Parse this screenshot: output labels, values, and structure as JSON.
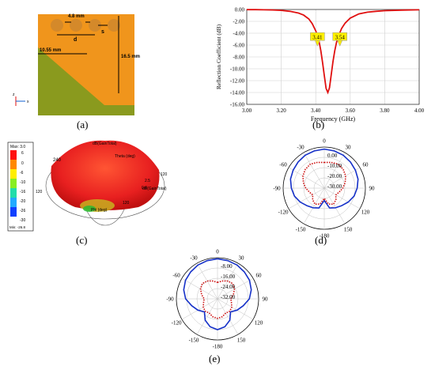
{
  "captions": [
    "(a)",
    "(b)",
    "(c)",
    "(d)",
    "(e)"
  ],
  "antenna": {
    "dims": [
      "4.8 mm",
      "d",
      "s",
      "10.55 mm",
      "16.5 mm"
    ],
    "axis_labels": [
      "z",
      "x"
    ],
    "colors": {
      "substrate": "#8a9a1e",
      "patch": "#f0951c",
      "hole": "#d4892a"
    }
  },
  "radiation3d": {
    "legend_title": "Max: 3.0",
    "legend_values": [
      "6",
      "0",
      "-6",
      "-10",
      "-16",
      "-20",
      "-26",
      "-30"
    ],
    "legend_min": "Min: -26.8",
    "label_top": "dB(GainTotal)",
    "label_theta": "Theta (deg)",
    "label_right": "dB(GainTotal)",
    "label_phi": "Phi (deg)",
    "tick_240": "240",
    "tick_120": "120",
    "tick_25": "2.5",
    "tick_0": "0.0",
    "tick_neg": "0.0",
    "tick_120b": "120",
    "tick_120c": "120"
  },
  "chart_data": [
    {
      "type": "line",
      "xlabel": "Frequency (GHz)",
      "ylabel": "Reflection Coefficient (dB)",
      "xlim": [
        3.0,
        4.0
      ],
      "ylim": [
        -16.0,
        0.0
      ],
      "xticks": [
        "3.00",
        "3.20",
        "3.40",
        "3.60",
        "3.80",
        "4.00"
      ],
      "yticks": [
        "0.00",
        "-2.00",
        "-4.00",
        "-6.00",
        "-8.00",
        "-10.00",
        "-12.00",
        "-14.00",
        "-16.00"
      ],
      "grid": true,
      "color": "#e01010",
      "x": [
        3.0,
        3.05,
        3.1,
        3.15,
        3.2,
        3.25,
        3.3,
        3.33,
        3.36,
        3.38,
        3.4,
        3.41,
        3.42,
        3.43,
        3.44,
        3.45,
        3.46,
        3.47,
        3.48,
        3.49,
        3.5,
        3.51,
        3.52,
        3.53,
        3.54,
        3.55,
        3.57,
        3.6,
        3.65,
        3.7,
        3.75,
        3.8,
        3.9,
        4.0
      ],
      "y": [
        -0.02,
        -0.03,
        -0.05,
        -0.08,
        -0.15,
        -0.3,
        -0.6,
        -0.95,
        -1.6,
        -2.4,
        -3.6,
        -4.4,
        -5.5,
        -7.0,
        -9.0,
        -11.2,
        -13.3,
        -14.0,
        -13.2,
        -11.0,
        -8.8,
        -7.0,
        -5.6,
        -4.6,
        -3.9,
        -3.2,
        -2.3,
        -1.45,
        -0.75,
        -0.45,
        -0.3,
        -0.2,
        -0.1,
        -0.05
      ],
      "markers": [
        {
          "x": 3.41,
          "label": "3.41"
        },
        {
          "x": 3.54,
          "label": "3.54"
        }
      ]
    },
    {
      "type": "polar",
      "angle_labels": [
        "0",
        "30",
        "60",
        "90",
        "120",
        "150",
        "-180",
        "-150",
        "-120",
        "-90",
        "-60",
        "-30"
      ],
      "radial_labels": [
        "0.00",
        "-10.00",
        "-20.00",
        "-30.00"
      ],
      "rlim": [
        -40,
        0
      ],
      "series": [
        {
          "color": "#1530c8",
          "dash": "solid",
          "theta": [
            0,
            15,
            30,
            45,
            60,
            75,
            90,
            105,
            120,
            135,
            150,
            165,
            180,
            195,
            210,
            225,
            240,
            255,
            270,
            285,
            300,
            315,
            330,
            345
          ],
          "r": [
            -2,
            -2.5,
            -3,
            -4,
            -5,
            -6,
            -8,
            -10,
            -13,
            -16,
            -18,
            -20,
            -28,
            -20,
            -18,
            -16,
            -13,
            -10,
            -8,
            -6,
            -5,
            -4,
            -3,
            -2.5
          ]
        },
        {
          "color": "#cc1010",
          "dash": "dotted",
          "theta": [
            0,
            15,
            30,
            45,
            60,
            75,
            90,
            105,
            120,
            135,
            150,
            165,
            180,
            195,
            210,
            225,
            240,
            255,
            270,
            285,
            300,
            315,
            330,
            345
          ],
          "r": [
            -15,
            -14,
            -13,
            -14,
            -16,
            -19,
            -22,
            -25,
            -27,
            -24,
            -22,
            -24,
            -30,
            -24,
            -22,
            -24,
            -27,
            -25,
            -22,
            -19,
            -16,
            -14,
            -13,
            -14
          ]
        }
      ]
    },
    {
      "type": "polar",
      "angle_labels": [
        "0",
        "30",
        "60",
        "90",
        "120",
        "150",
        "-180",
        "-150",
        "-120",
        "-90",
        "-60",
        "-30"
      ],
      "radial_labels": [
        "-8.00",
        "-16.00",
        "-24.00",
        "-32.00"
      ],
      "rlim": [
        -40,
        0
      ],
      "series": [
        {
          "color": "#1530c8",
          "dash": "solid",
          "theta": [
            0,
            15,
            30,
            45,
            60,
            75,
            90,
            105,
            120,
            135,
            150,
            165,
            180,
            195,
            210,
            225,
            240,
            255,
            270,
            285,
            300,
            315,
            330,
            345
          ],
          "r": [
            -1,
            -1.5,
            -2,
            -3,
            -4,
            -6,
            -9,
            -14,
            -18,
            -22,
            -16,
            -12,
            -10,
            -12,
            -16,
            -22,
            -18,
            -14,
            -9,
            -6,
            -4,
            -3,
            -2,
            -1.5
          ]
        },
        {
          "color": "#cc1010",
          "dash": "dotted",
          "theta": [
            0,
            15,
            30,
            45,
            60,
            75,
            90,
            105,
            120,
            135,
            150,
            165,
            180,
            195,
            210,
            225,
            240,
            255,
            270,
            285,
            300,
            315,
            330,
            345
          ],
          "r": [
            -24,
            -22,
            -20,
            -19,
            -21,
            -24,
            -27,
            -26,
            -24,
            -23,
            -24,
            -22,
            -21,
            -22,
            -24,
            -23,
            -24,
            -26,
            -27,
            -24,
            -21,
            -19,
            -20,
            -22
          ]
        }
      ]
    }
  ]
}
